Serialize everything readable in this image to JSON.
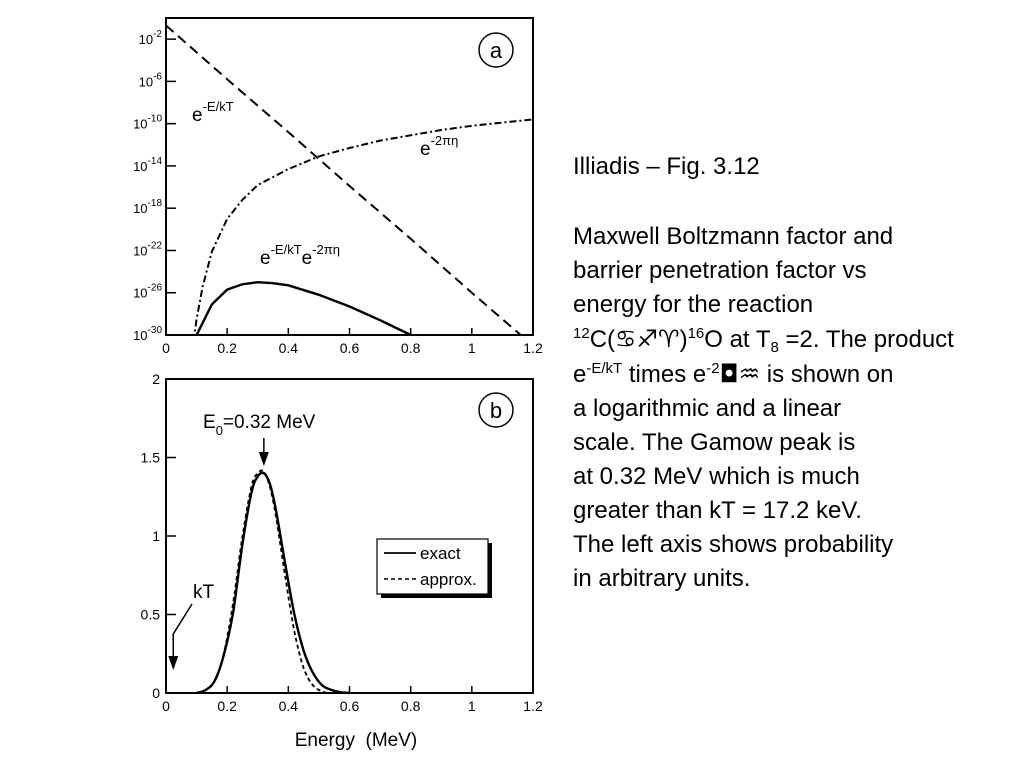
{
  "chart_data": [
    {
      "panel_label": "a",
      "type": "line",
      "log_y": true,
      "xlim": [
        0,
        1.2
      ],
      "ylim": [
        1e-30,
        1.0
      ],
      "x_ticks": [
        "0",
        "0.2",
        "0.4",
        "0.6",
        "0.8",
        "1",
        "1.2"
      ],
      "y_ticks": [
        {
          "base": "10",
          "exp": "-2",
          "value": -2
        },
        {
          "base": "10",
          "exp": "-6",
          "value": -6
        },
        {
          "base": "10",
          "exp": "-10",
          "value": -10
        },
        {
          "base": "10",
          "exp": "-14",
          "value": -14
        },
        {
          "base": "10",
          "exp": "-18",
          "value": -18
        },
        {
          "base": "10",
          "exp": "-22",
          "value": -22
        },
        {
          "base": "10",
          "exp": "-26",
          "value": -26
        },
        {
          "base": "10",
          "exp": "-30",
          "value": -30
        }
      ],
      "series": [
        {
          "label_base": "e",
          "label_sup": "-E/kT",
          "style": "dashed",
          "x": [
            0,
            0.2,
            0.4,
            0.6,
            0.8,
            1.0,
            1.2
          ],
          "log10_y": [
            -0.7,
            -5.8,
            -10.8,
            -15.9,
            -20.9,
            -26.0,
            -31.0
          ]
        },
        {
          "label_base": "e",
          "label_sup": "-2πη",
          "style": "dashdot",
          "x": [
            0.09,
            0.1,
            0.12,
            0.15,
            0.2,
            0.25,
            0.3,
            0.4,
            0.5,
            0.6,
            0.7,
            0.8,
            0.9,
            1.0,
            1.1,
            1.2
          ],
          "log10_y": [
            -30.6,
            -28.5,
            -25.4,
            -22.1,
            -19.0,
            -17.2,
            -15.8,
            -14.3,
            -13.1,
            -12.3,
            -11.6,
            -11.1,
            -10.6,
            -10.2,
            -9.9,
            -9.6
          ]
        },
        {
          "label_base": "e",
          "label_sup": "-E/kT",
          "label_base2": "e",
          "label_sup2": "-2πη",
          "style": "solid",
          "x": [
            0.1,
            0.15,
            0.2,
            0.25,
            0.3,
            0.35,
            0.4,
            0.5,
            0.6,
            0.7,
            0.8
          ],
          "log10_y": [
            -30.0,
            -27.1,
            -25.7,
            -25.2,
            -25.0,
            -25.1,
            -25.3,
            -26.2,
            -27.3,
            -28.6,
            -30.0
          ]
        }
      ]
    },
    {
      "panel_label": "b",
      "type": "line",
      "xlim": [
        0,
        1.2
      ],
      "ylim": [
        0,
        2
      ],
      "x_ticks": [
        "0",
        "0.2",
        "0.4",
        "0.6",
        "0.8",
        "1",
        "1.2"
      ],
      "y_ticks": [
        "0",
        "0.5",
        "1",
        "1.5",
        "2"
      ],
      "xlabel": "Energy  (MeV)",
      "annotations": {
        "peak_label": "E",
        "peak_sub": "0",
        "peak_value": "=0.32 MeV",
        "peak_x": 0.32,
        "kT_label": "kT",
        "kT_x": 0.0172
      },
      "legend": {
        "position": "right",
        "entries": [
          {
            "label": "exact",
            "style": "solid"
          },
          {
            "label": "approx.",
            "style": "dashed"
          }
        ]
      },
      "series": [
        {
          "name": "exact",
          "style": "solid",
          "x": [
            0.1,
            0.13,
            0.16,
            0.19,
            0.22,
            0.25,
            0.28,
            0.3,
            0.32,
            0.34,
            0.36,
            0.39,
            0.42,
            0.45,
            0.48,
            0.51,
            0.54,
            0.57,
            0.6
          ],
          "y": [
            0.0,
            0.02,
            0.08,
            0.25,
            0.52,
            0.95,
            1.28,
            1.38,
            1.4,
            1.33,
            1.16,
            0.82,
            0.5,
            0.27,
            0.13,
            0.05,
            0.02,
            0.005,
            0.0
          ]
        },
        {
          "name": "approx.",
          "style": "dashed",
          "x": [
            0.1,
            0.13,
            0.16,
            0.19,
            0.22,
            0.25,
            0.28,
            0.3,
            0.32,
            0.34,
            0.36,
            0.39,
            0.42,
            0.45,
            0.48,
            0.51,
            0.53
          ],
          "y": [
            0.0,
            0.02,
            0.08,
            0.26,
            0.58,
            1.0,
            1.32,
            1.4,
            1.41,
            1.31,
            1.12,
            0.74,
            0.39,
            0.16,
            0.05,
            0.01,
            0.0
          ]
        }
      ]
    }
  ],
  "caption": {
    "title": "Illiadis – Fig. 3.12",
    "line1": "Maxwell Boltzmann factor and",
    "line2": "barrier penetration factor vs",
    "line3": "energy for the reaction",
    "l4_sup1": "12",
    "l4_a": "C(",
    "l4_sym": "♋♐♈",
    "l4_b": ")",
    "l4_sup2": "16",
    "l4_c": "O at T",
    "l4_sub": "8",
    "l4_d": " =2. The product",
    "l5_a": "e",
    "l5_sup1": "-E/kT",
    "l5_b": " times e",
    "l5_sup2": "-2",
    "l5_sym": "◘♒",
    "l5_c": " is shown on",
    "line6": "a logarithmic and a linear",
    "line7": "scale. The Gamow peak is",
    "line8": "at 0.32 MeV which is much",
    "line9": "greater than kT = 17.2 keV.",
    "line10": "The left axis shows probability",
    "line11": "in arbitrary units."
  }
}
